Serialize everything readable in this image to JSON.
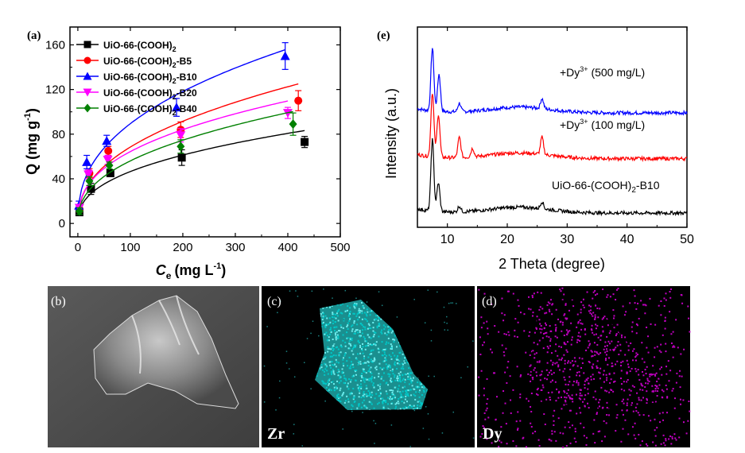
{
  "chart_data": [
    {
      "panel": "(a)",
      "type": "scatter",
      "xlabel_prefix": "C",
      "xlabel_sub": "e",
      "xlabel_unit": "(mg L",
      "xlabel_unit_sup": "-1",
      "xlabel_close": ")",
      "ylabel_main": "Q (mg g",
      "ylabel_sup": "-1",
      "ylabel_close": ")",
      "xlim": [
        -15,
        500
      ],
      "ylim": [
        -12,
        176
      ],
      "xticks": [
        0,
        100,
        200,
        300,
        400,
        500
      ],
      "yticks": [
        0,
        40,
        80,
        120,
        160
      ],
      "legend_position": "top-left",
      "series": [
        {
          "name": "UiO-66-(COOH)",
          "name_sub": "2",
          "name_suffix": "",
          "color": "#000000",
          "marker": "square",
          "x": [
            3,
            25,
            62,
            198,
            432
          ],
          "y": [
            10,
            31,
            45,
            59,
            73
          ],
          "err": [
            3,
            5,
            3,
            7,
            5
          ]
        },
        {
          "name": "UiO-66-(COOH)",
          "name_sub": "2",
          "name_suffix": "-B5",
          "color": "#ff0000",
          "marker": "circle",
          "x": [
            3,
            22,
            58,
            196,
            420
          ],
          "y": [
            13,
            45,
            65,
            84,
            110
          ],
          "err": [
            3,
            4,
            4,
            7,
            9
          ]
        },
        {
          "name": "UiO-66-(COOH)",
          "name_sub": "2",
          "name_suffix": "-B10",
          "color": "#0000ff",
          "marker": "triangle-up",
          "x": [
            2,
            17,
            55,
            188,
            395
          ],
          "y": [
            16,
            55,
            74,
            104,
            150
          ],
          "err": [
            4,
            6,
            5,
            8,
            12
          ]
        },
        {
          "name": "UiO-66-(COOH)",
          "name_sub": "2",
          "name_suffix": "-B20",
          "color": "#ff00ff",
          "marker": "triangle-down",
          "x": [
            3,
            20,
            57,
            196,
            400
          ],
          "y": [
            14,
            44,
            57,
            79,
            99
          ],
          "err": [
            3,
            4,
            4,
            6,
            5
          ]
        },
        {
          "name": "UiO-66-(COOH)",
          "name_sub": "2",
          "name_suffix": "-B40",
          "color": "#008000",
          "marker": "diamond",
          "x": [
            3,
            22,
            60,
            196,
            410
          ],
          "y": [
            11,
            38,
            52,
            69,
            89
          ],
          "err": [
            3,
            4,
            3,
            6,
            10
          ]
        }
      ]
    },
    {
      "panel": "(e)",
      "type": "line",
      "xlabel": "2 Theta (degree)",
      "ylabel": "Intensity (a.u.)",
      "xlim": [
        5,
        50
      ],
      "xticks": [
        10,
        20,
        30,
        40,
        50
      ],
      "series": [
        {
          "label_prefix": "+Dy",
          "label_sup": "3+",
          "label_suffix": " (500 mg/L)",
          "color": "#0000ff",
          "baseline": 0.7,
          "peaks": [
            [
              7.5,
              0.44
            ],
            [
              8.6,
              0.26
            ],
            [
              12.0,
              0.06
            ],
            [
              25.8,
              0.07
            ]
          ]
        },
        {
          "label_prefix": "+Dy",
          "label_sup": "3+",
          "label_suffix": " (100 mg/L)",
          "color": "#ff0000",
          "baseline": 0.38,
          "peaks": [
            [
              7.5,
              0.45
            ],
            [
              8.5,
              0.3
            ],
            [
              12.0,
              0.14
            ],
            [
              14.2,
              0.06
            ],
            [
              25.8,
              0.12
            ]
          ]
        },
        {
          "label_prefix": "UiO-66-(COOH)",
          "label_sub": "2",
          "label_suffix": "-B10",
          "color": "#000000",
          "baseline": 0.0,
          "peaks": [
            [
              7.5,
              0.5
            ],
            [
              8.5,
              0.2
            ],
            [
              12.0,
              0.04
            ],
            [
              25.8,
              0.05
            ]
          ]
        }
      ]
    }
  ],
  "images": [
    {
      "panel": "(b)"
    },
    {
      "panel": "(c)",
      "caption": "Zr",
      "color": "#00c8c8"
    },
    {
      "panel": "(d)",
      "caption": "Dy",
      "color": "#c000c0"
    }
  ]
}
